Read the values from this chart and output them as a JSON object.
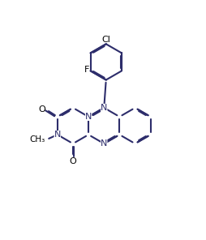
{
  "bg_color": "#ffffff",
  "bond_color": "#2d2d6b",
  "label_color": "#000000",
  "lw": 1.5,
  "font_size": 8.0,
  "b": 0.88,
  "xlim": [
    0,
    10
  ],
  "ylim": [
    0,
    10
  ],
  "figsize": [
    2.54,
    2.96
  ],
  "dpi": 100
}
